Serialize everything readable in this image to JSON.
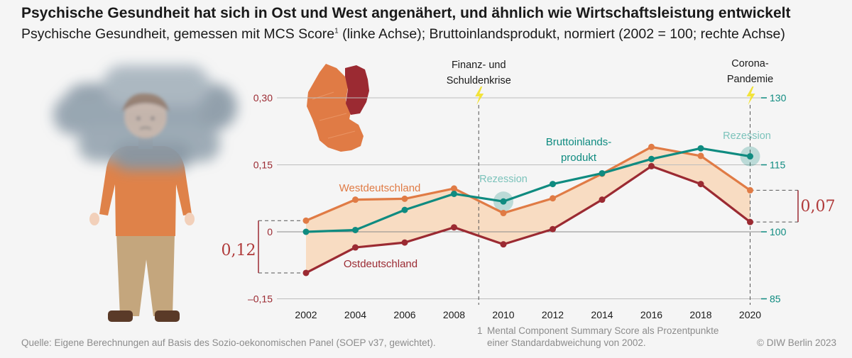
{
  "header": {
    "title": "Psychische Gesundheit hat sich in Ost und West angenähert, und ähnlich wie Wirtschaftsleistung entwickelt",
    "subtitle_a": "Psychische Gesundheit, gemessen mit MCS Score",
    "subtitle_sup": "1",
    "subtitle_b": " (linke Achse); Bruttoinlandsprodukt, normiert (2002 = 100; rechte Achse)"
  },
  "footer": {
    "source": "Quelle: Eigene Berechnungen auf Basis des Sozio-oekonomischen Panel (SOEP v37, gewichtet).",
    "footnote_num": "1",
    "footnote_line1": "Mental Component Summary Score als Prozentpunkte",
    "footnote_line2": "einer Standardabweichung von 2002.",
    "copyright": "© DIW Berlin 2023"
  },
  "colors": {
    "west": "#e07b45",
    "ost": "#9b2a32",
    "gdp": "#0f8b80",
    "band": "#f8dcc2",
    "left_axis": "#9b2a32",
    "right_axis": "#0f8b80",
    "grid": "#bdbdbd",
    "bolt": "#f2e33a"
  },
  "chart_data": {
    "type": "line",
    "x": [
      2002,
      2004,
      2006,
      2008,
      2010,
      2012,
      2014,
      2016,
      2018,
      2020
    ],
    "y_left": {
      "range": [
        -0.15,
        0.3
      ],
      "ticks": [
        -0.15,
        0,
        0.15,
        0.3
      ],
      "tick_labels": [
        "–0,15",
        "0",
        "0,15",
        "0,30"
      ]
    },
    "y_right": {
      "range": [
        85,
        130
      ],
      "ticks": [
        85,
        100,
        115,
        130
      ],
      "tick_labels": [
        "85",
        "100",
        "115",
        "130"
      ]
    },
    "series": [
      {
        "name": "Westdeutschland",
        "axis": "left",
        "values": [
          0.025,
          0.072,
          0.074,
          0.097,
          0.042,
          0.075,
          0.13,
          0.19,
          0.17,
          0.093
        ]
      },
      {
        "name": "Ostdeutschland",
        "axis": "left",
        "values": [
          -0.092,
          -0.035,
          -0.024,
          0.01,
          -0.028,
          0.006,
          0.072,
          0.147,
          0.107,
          0.022
        ]
      },
      {
        "name": "Bruttoinlandsprodukt",
        "axis": "right",
        "values": [
          100,
          100.4,
          104.9,
          108.5,
          106.8,
          110.7,
          113.1,
          116.3,
          118.7,
          116.9
        ]
      }
    ],
    "series_labels": {
      "west": "Westdeutschland",
      "ost": "Ostdeutschland",
      "gdp_line1": "Bruttoinlands-",
      "gdp_line2": "produkt"
    },
    "x_tick_labels": [
      "2002",
      "2004",
      "2006",
      "2008",
      "2010",
      "2012",
      "2014",
      "2016",
      "2018",
      "2020"
    ],
    "annotations": {
      "crisis1_line1": "Finanz- und",
      "crisis1_line2": "Schuldenkrise",
      "crisis1_year": 2009,
      "crisis2_line1": "Corona-",
      "crisis2_line2": "Pandemie",
      "crisis2_year": 2020,
      "rezession1": "Rezession",
      "rezession1_year": 2010,
      "rezession2": "Rezession",
      "rezession2_year": 2020,
      "gap_2002": "0,12",
      "gap_2020": "0,07"
    }
  }
}
